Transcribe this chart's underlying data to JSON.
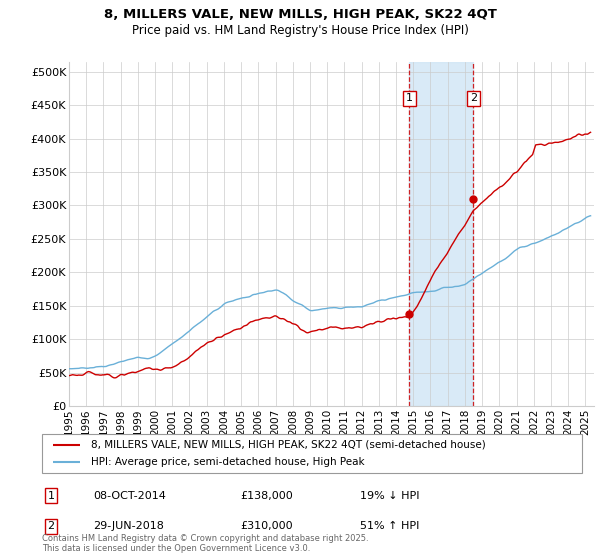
{
  "title": "8, MILLERS VALE, NEW MILLS, HIGH PEAK, SK22 4QT",
  "subtitle": "Price paid vs. HM Land Registry's House Price Index (HPI)",
  "ylabel_ticks": [
    "£0",
    "£50K",
    "£100K",
    "£150K",
    "£200K",
    "£250K",
    "£300K",
    "£350K",
    "£400K",
    "£450K",
    "£500K"
  ],
  "ytick_values": [
    0,
    50000,
    100000,
    150000,
    200000,
    250000,
    300000,
    350000,
    400000,
    450000,
    500000
  ],
  "ylim": [
    0,
    515000
  ],
  "xlim_start": 1995.0,
  "xlim_end": 2025.5,
  "sale1_date": 2014.77,
  "sale1_price": 138000,
  "sale1_label": "1",
  "sale2_date": 2018.49,
  "sale2_price": 310000,
  "sale2_label": "2",
  "hpi_color": "#6ab0d8",
  "price_color": "#cc0000",
  "shaded_color": "#d0e5f5",
  "grid_color": "#cccccc",
  "background_color": "#ffffff",
  "legend_line1": "8, MILLERS VALE, NEW MILLS, HIGH PEAK, SK22 4QT (semi-detached house)",
  "legend_line2": "HPI: Average price, semi-detached house, High Peak",
  "annotation1_date": "08-OCT-2014",
  "annotation1_price": "£138,000",
  "annotation1_pct": "19% ↓ HPI",
  "annotation2_date": "29-JUN-2018",
  "annotation2_price": "£310,000",
  "annotation2_pct": "51% ↑ HPI",
  "footer": "Contains HM Land Registry data © Crown copyright and database right 2025.\nThis data is licensed under the Open Government Licence v3.0.",
  "xtick_years": [
    1995,
    1996,
    1997,
    1998,
    1999,
    2000,
    2001,
    2002,
    2003,
    2004,
    2005,
    2006,
    2007,
    2008,
    2009,
    2010,
    2011,
    2012,
    2013,
    2014,
    2015,
    2016,
    2017,
    2018,
    2019,
    2020,
    2021,
    2022,
    2023,
    2024,
    2025
  ]
}
